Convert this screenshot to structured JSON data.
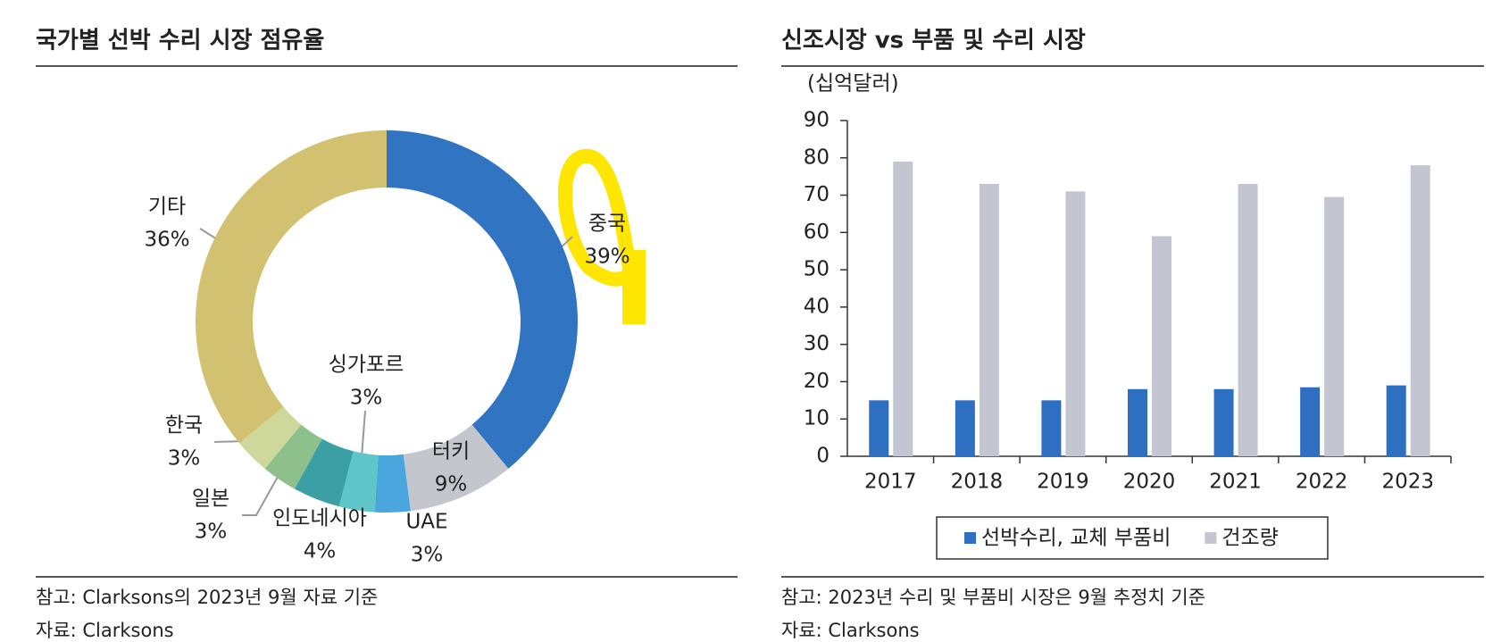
{
  "chart_data": [
    {
      "type": "pie",
      "title": "국가별 선박 수리 시장 점유율",
      "categories": [
        "중국",
        "터키",
        "UAE",
        "싱가포르",
        "인도네시아",
        "일본",
        "한국",
        "기타"
      ],
      "values": [
        39,
        9,
        3,
        3,
        4,
        3,
        3,
        36
      ],
      "value_labels": [
        "39%",
        "9%",
        "3%",
        "3%",
        "4%",
        "3%",
        "3%",
        "36%"
      ],
      "colors": [
        "#3074c2",
        "#c4c6ce",
        "#4aa6dc",
        "#5ec6c8",
        "#3c9fa6",
        "#8dc08b",
        "#cfd89b",
        "#d3c172"
      ],
      "notes": [
        "참고: Clarksons의 2023년 9월 자료 기준",
        "자료: Clarksons"
      ]
    },
    {
      "type": "bar",
      "title": "신조시장 vs 부품 및 수리 시장",
      "y_label": "(십억달러)",
      "categories": [
        "2017",
        "2018",
        "2019",
        "2020",
        "2021",
        "2022",
        "2023"
      ],
      "series": [
        {
          "name": "선박수리, 교체 부품비",
          "color": "#2f6fc2",
          "values": [
            15,
            15,
            15,
            18,
            18,
            18.5,
            19
          ]
        },
        {
          "name": "건조량",
          "color": "#c3c6d0",
          "values": [
            79,
            73,
            71,
            59,
            73,
            69.5,
            78
          ]
        }
      ],
      "ylim": [
        0,
        90
      ],
      "yticks": [
        0,
        10,
        20,
        30,
        40,
        50,
        60,
        70,
        80,
        90
      ],
      "notes": [
        "참고: 2023년 수리 및 부품비 시장은 9월 추정치 기준",
        "자료: Clarksons"
      ]
    }
  ]
}
